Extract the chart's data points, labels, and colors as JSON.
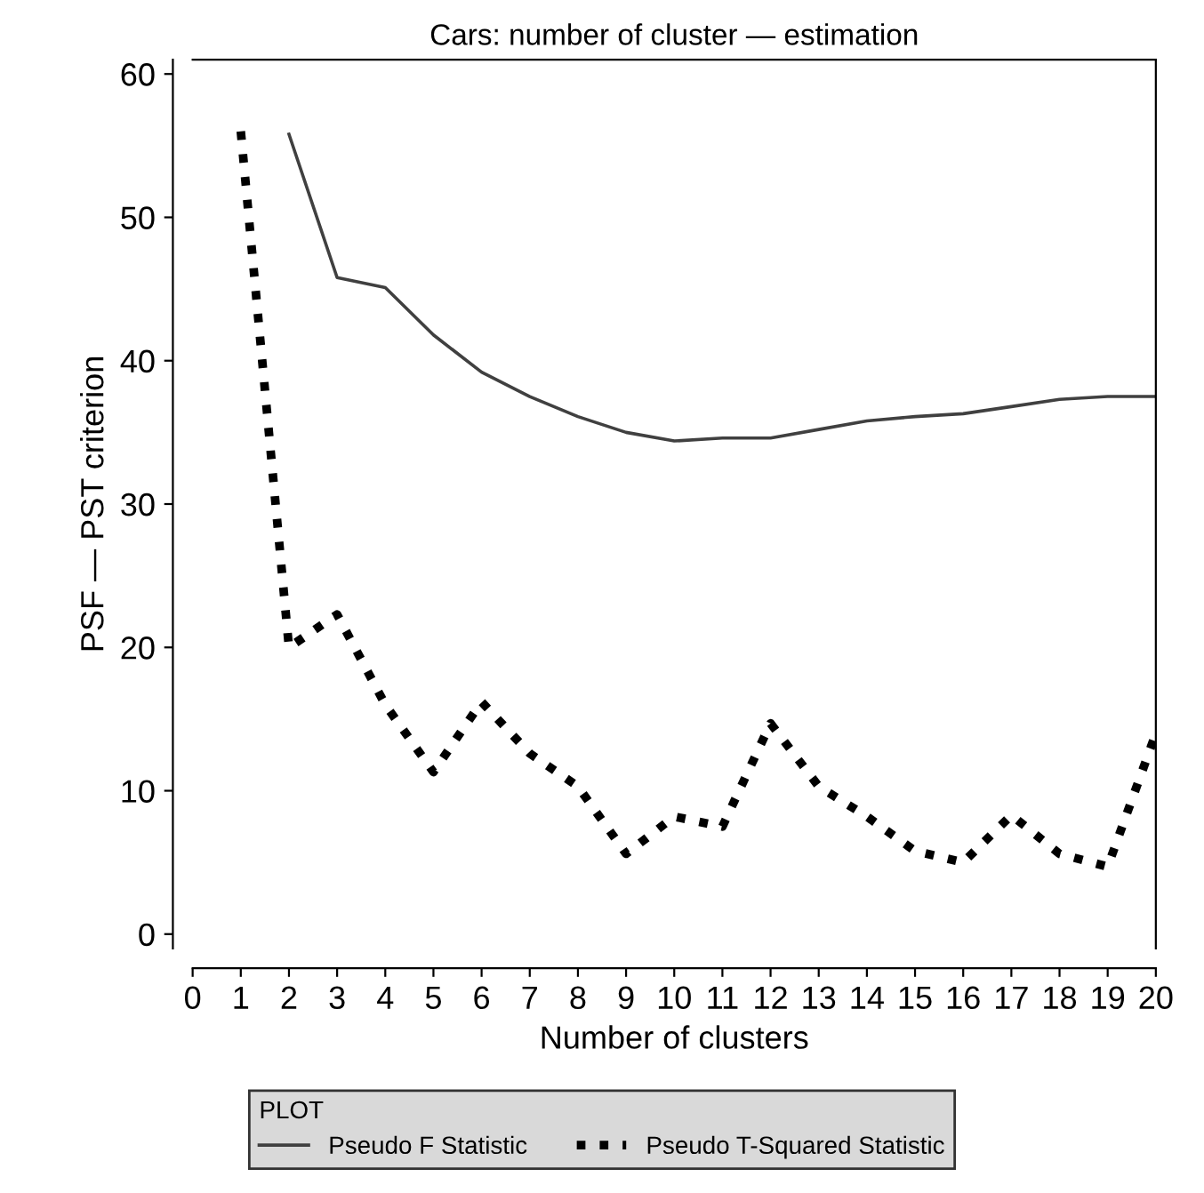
{
  "chart_data": {
    "type": "line",
    "title": "Cars: number of cluster — estimation",
    "xlabel": "Number of clusters",
    "ylabel": "PSF — PST criterion",
    "legend_title": "PLOT",
    "legend": "bottom",
    "grid": false,
    "xlim": [
      0,
      20
    ],
    "xticks": [
      0,
      1,
      2,
      3,
      4,
      5,
      6,
      7,
      8,
      9,
      10,
      11,
      12,
      13,
      14,
      15,
      16,
      17,
      18,
      19,
      20
    ],
    "ylim": [
      -1,
      61
    ],
    "yticks": [
      0,
      10,
      20,
      30,
      40,
      50,
      60
    ],
    "series": [
      {
        "name": "Pseudo F Statistic",
        "color": "#404040",
        "line_style": "solid",
        "x": [
          2,
          3,
          4,
          5,
          6,
          7,
          8,
          9,
          10,
          11,
          12,
          13,
          14,
          15,
          16,
          17,
          18,
          19,
          20
        ],
        "values": [
          55.8,
          45.8,
          45.1,
          41.8,
          39.2,
          37.5,
          36.1,
          35,
          34.4,
          34.6,
          34.6,
          35.2,
          35.8,
          36.1,
          36.3,
          36.8,
          37.3,
          37.5,
          37.5
        ]
      },
      {
        "name": "Pseudo T-Squared Statistic",
        "color": "#000000",
        "line_style": "dotted",
        "x": [
          1,
          2,
          3,
          4,
          5,
          6,
          7,
          8,
          9,
          10,
          11,
          12,
          13,
          14,
          15,
          16,
          17,
          18,
          19,
          20
        ],
        "values": [
          56,
          20,
          22.3,
          16,
          11.3,
          16.2,
          12.6,
          10.3,
          5.6,
          8.2,
          7.5,
          14.7,
          10.3,
          8.2,
          5.8,
          5,
          8.3,
          5.6,
          4.7,
          14
        ]
      }
    ]
  }
}
